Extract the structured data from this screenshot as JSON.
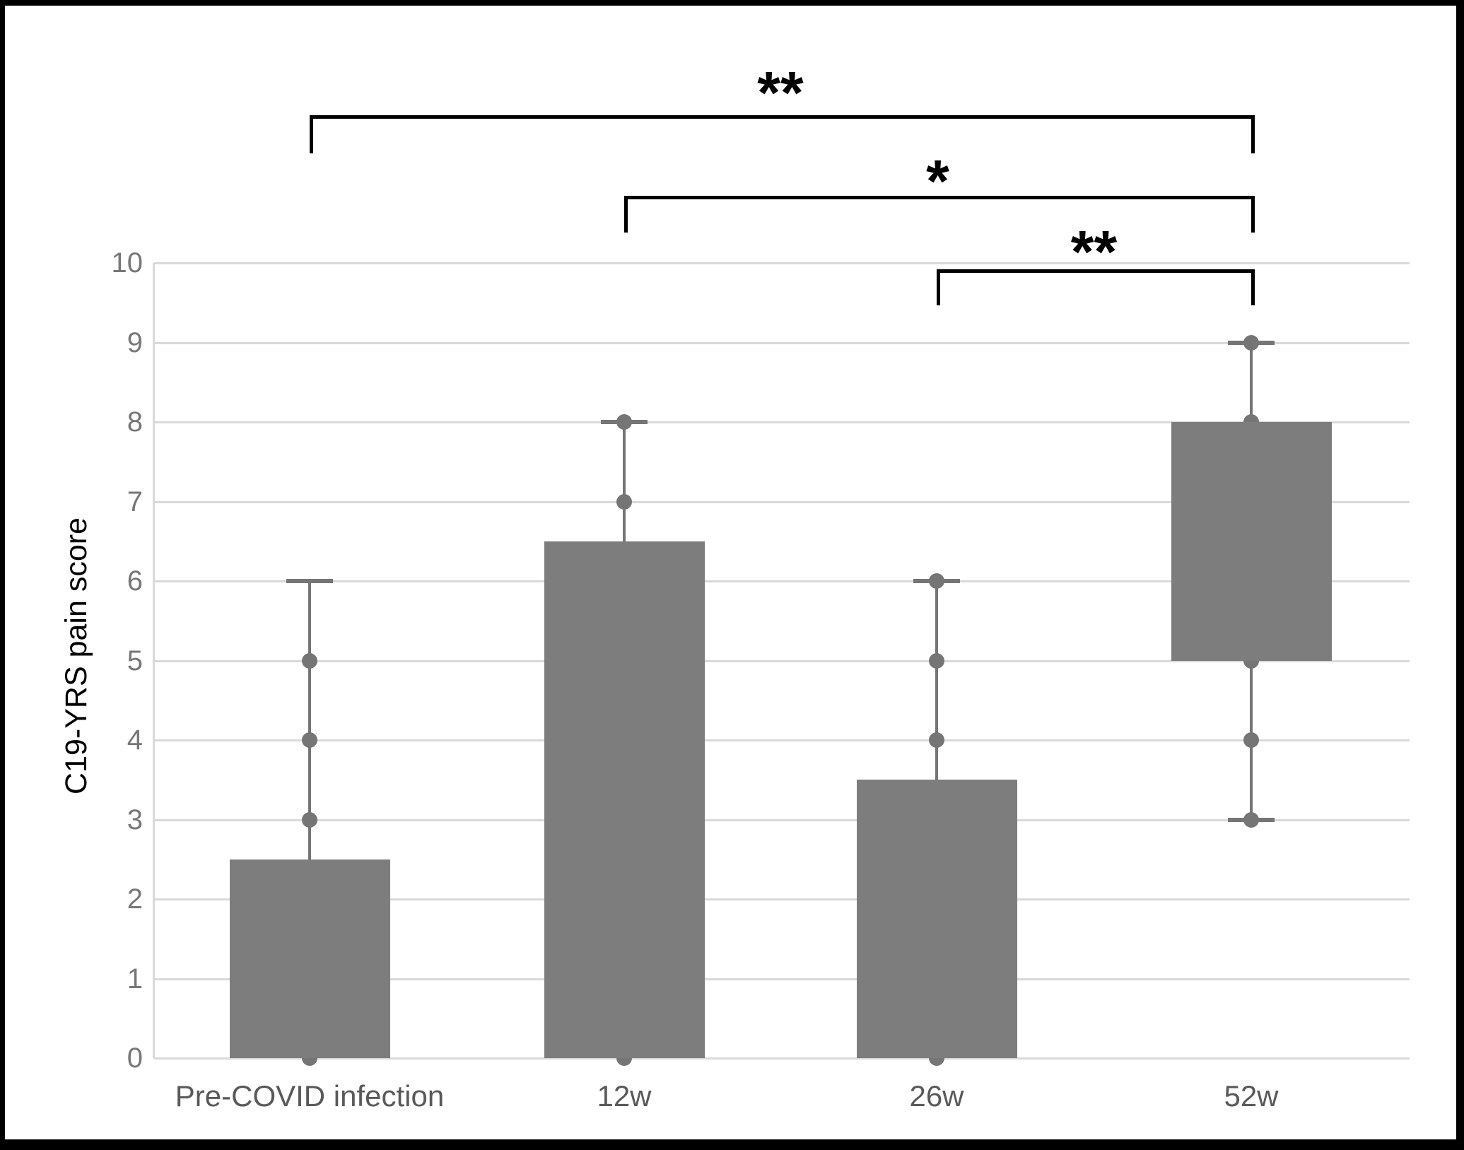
{
  "chart_data": {
    "type": "box",
    "title": "",
    "xlabel": "",
    "ylabel": "C19-YRS pain score",
    "ylim": [
      0,
      10
    ],
    "yticks": [
      0,
      1,
      2,
      3,
      4,
      5,
      6,
      7,
      8,
      9,
      10
    ],
    "grid": "horizontal",
    "categories": [
      "Pre-COVID infection",
      "12w",
      "26w",
      "52w"
    ],
    "boxes": [
      {
        "category": "Pre-COVID infection",
        "box_low": 0,
        "box_high": 2.5,
        "whisker_low": 0,
        "whisker_high": 6,
        "cap_values": [
          6
        ],
        "point_values": [
          0,
          3,
          4,
          5
        ]
      },
      {
        "category": "12w",
        "box_low": 0,
        "box_high": 6.5,
        "whisker_low": 0,
        "whisker_high": 8,
        "cap_values": [
          8
        ],
        "point_values": [
          0,
          7,
          8
        ]
      },
      {
        "category": "26w",
        "box_low": 0,
        "box_high": 3.5,
        "whisker_low": 0,
        "whisker_high": 6,
        "cap_values": [
          6
        ],
        "point_values": [
          0,
          4,
          5,
          6
        ]
      },
      {
        "category": "52w",
        "box_low": 5,
        "box_high": 8,
        "whisker_low": 3,
        "whisker_high": 9,
        "cap_values": [
          9,
          3
        ],
        "point_values": [
          3,
          4,
          5,
          8,
          9
        ]
      }
    ],
    "significance": [
      {
        "from": "Pre-COVID infection",
        "to": "52w",
        "label": "**"
      },
      {
        "from": "12w",
        "to": "52w",
        "label": "*"
      },
      {
        "from": "26w",
        "to": "52w",
        "label": "**"
      }
    ]
  },
  "colors": {
    "bar": "#7d7d7d",
    "marker": "#757575",
    "gridline": "#d9d9d9",
    "ytick_label": "#777777",
    "xaxis_label": "#595959",
    "yaxis_title": "#000000",
    "bracket": "#000000",
    "frame": "#000000",
    "background": "#ffffff"
  }
}
